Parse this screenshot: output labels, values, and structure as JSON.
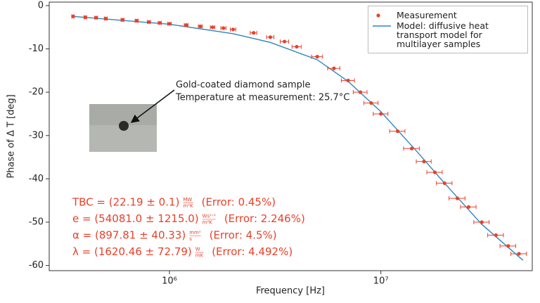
{
  "chart_data": {
    "type": "scatter",
    "xlabel": "Frequency [Hz]",
    "ylabel": "Phase of Δ T [deg]",
    "xscale": "log",
    "xlim": [
      270000,
      52000000
    ],
    "ylim": [
      -61.2,
      0.8
    ],
    "xticks": [
      {
        "value": 1000000,
        "label": "10⁶"
      },
      {
        "value": 10000000,
        "label": "10⁷"
      }
    ],
    "yticks": [
      0,
      -10,
      -20,
      -30,
      -40,
      -50,
      -60
    ],
    "legend": "upper right",
    "series": [
      {
        "name": "Measurement",
        "type": "scatter",
        "color": "#e8412a",
        "x": [
          350000,
          400000,
          450000,
          500000,
          600000,
          700000,
          800000,
          900000,
          1000000,
          1200000,
          1400000,
          1600000,
          1800000,
          2000000,
          2500000,
          3000000,
          3500000,
          4000000,
          5000000,
          6000000,
          7000000,
          8000000,
          9000000,
          10000000,
          12000000,
          14000000,
          16000000,
          18000000,
          20000000,
          23000000,
          26000000,
          30000000,
          35000000,
          40000000,
          45000000
        ],
        "values": [
          -2.5,
          -2.7,
          -2.8,
          -3.0,
          -3.3,
          -3.5,
          -3.8,
          -4.0,
          -4.2,
          -4.5,
          -4.8,
          -5.0,
          -5.2,
          -5.5,
          -6.3,
          -7.3,
          -8.3,
          -9.5,
          -11.8,
          -14.5,
          -17.3,
          -20,
          -22.5,
          -25,
          -29,
          -33,
          -36,
          -38.5,
          -41,
          -44.5,
          -46.5,
          -50,
          -53,
          -55.5,
          -57.3
        ],
        "x_error": [
          5000,
          6000,
          7000,
          8000,
          10000,
          12000,
          14000,
          16000,
          20000,
          25000,
          30000,
          40000,
          50000,
          60000,
          90000,
          120000,
          160000,
          200000,
          300000,
          400000,
          500000,
          600000,
          700000,
          800000,
          1000000,
          1200000,
          1300000,
          1500000,
          1700000,
          2000000,
          2200000,
          2500000,
          3000000,
          3400000,
          3800000
        ]
      },
      {
        "name": "Model: diffusive heat transport model for multilayer samples",
        "type": "line",
        "color": "#2e86c1",
        "x": [
          350000,
          1000000,
          2000000,
          3000000,
          5000000,
          7000000,
          10000000,
          15000000,
          20000000,
          30000000,
          47000000
        ],
        "values": [
          -2.5,
          -4.3,
          -6.5,
          -8.5,
          -12.5,
          -17.5,
          -24.5,
          -34,
          -41,
          -50.5,
          -58.8
        ]
      }
    ],
    "inset_caption": [
      "Gold-coated diamond sample",
      "Temperature at measurement: 25.7°C"
    ],
    "fit_results": [
      {
        "label": "TBC = (22.19 ± 0.1)",
        "unit_num": "MW",
        "unit_den": "m²K",
        "error": "(Error: 0.45%)"
      },
      {
        "label": "e = (54081.0 ± 1215.0)",
        "unit_num": "Ws¹ᐟ²",
        "unit_den": "m²K",
        "error": "(Error: 2.246%)"
      },
      {
        "label": "α = (897.81 ± 40.33)",
        "unit_num": "mm²",
        "unit_den": "s",
        "error": "(Error: 4.5%)"
      },
      {
        "label": "λ = (1620.46 ± 72.79)",
        "unit_num": "W",
        "unit_den": "mK",
        "error": "(Error: 4.492%)"
      }
    ]
  }
}
